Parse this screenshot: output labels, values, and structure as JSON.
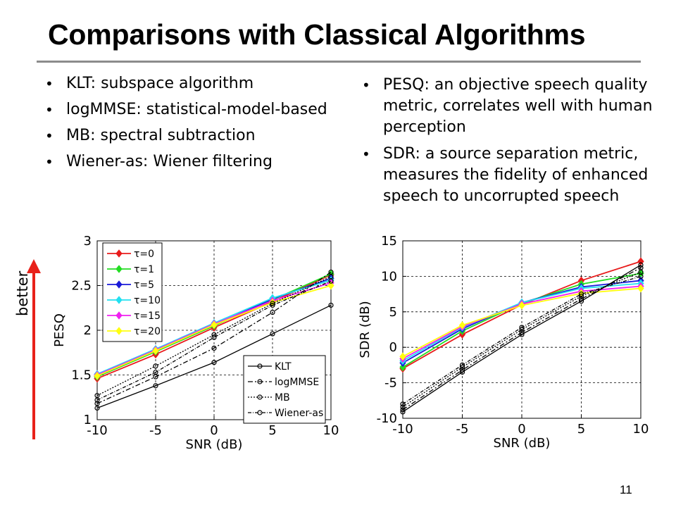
{
  "slide": {
    "title": "Comparisons with Classical Algorithms",
    "left_bullets": [
      "KLT: subspace algorithm",
      "logMMSE: statistical-model-based",
      "MB: spectral subtraction",
      "Wiener-as: Wiener filtering"
    ],
    "right_bullets": [
      "PESQ: an objective speech quality metric, correlates well with human perception",
      "SDR: a source separation metric, measures the fidelity of enhanced speech to uncorrupted speech"
    ],
    "better_label": "better",
    "page_number": "11",
    "arrow_color": "#e8211a"
  },
  "chart_data": [
    {
      "type": "line",
      "x": [
        -10,
        -5,
        0,
        5,
        10
      ],
      "xlabel": "SNR (dB)",
      "ylabel": "PESQ",
      "xlim": [
        -10,
        10
      ],
      "ylim": [
        1,
        3
      ],
      "xticks": [
        "-10",
        "-5",
        "0",
        "5",
        "10"
      ],
      "yticks": [
        "1",
        "1.5",
        "2",
        "2.5",
        "3"
      ],
      "grid": true,
      "legends": [
        "top-left",
        "bottom-right"
      ],
      "series": [
        {
          "name": "τ=0",
          "values": [
            1.46,
            1.73,
            2.03,
            2.32,
            2.62
          ],
          "color": "#e81b1b",
          "marker": "diamond",
          "legend": 0
        },
        {
          "name": "τ=1",
          "values": [
            1.48,
            1.76,
            2.05,
            2.34,
            2.63
          ],
          "color": "#22dd22",
          "marker": "diamond",
          "legend": 0
        },
        {
          "name": "τ=5",
          "values": [
            1.49,
            1.77,
            2.06,
            2.35,
            2.58
          ],
          "color": "#1a1ad8",
          "marker": "diamond",
          "legend": 0
        },
        {
          "name": "τ=10",
          "values": [
            1.51,
            1.79,
            2.08,
            2.36,
            2.56
          ],
          "color": "#22e0f0",
          "marker": "diamond",
          "legend": 0
        },
        {
          "name": "τ=15",
          "values": [
            1.5,
            1.78,
            2.07,
            2.33,
            2.53
          ],
          "color": "#f020f0",
          "marker": "diamond",
          "legend": 0
        },
        {
          "name": "τ=20",
          "values": [
            1.49,
            1.77,
            2.06,
            2.31,
            2.5
          ],
          "color": "#ffff10",
          "marker": "diamond",
          "legend": 0
        },
        {
          "name": "KLT",
          "values": [
            1.13,
            1.38,
            1.64,
            1.96,
            2.28
          ],
          "color": "#000000",
          "dash": "",
          "marker": "circle",
          "legend": 1
        },
        {
          "name": "logMMSE",
          "values": [
            1.18,
            1.48,
            1.8,
            2.2,
            2.65
          ],
          "color": "#000000",
          "dash": "7,3,2,3",
          "marker": "circle",
          "legend": 1
        },
        {
          "name": "MB",
          "values": [
            1.27,
            1.6,
            1.95,
            2.3,
            2.6
          ],
          "color": "#000000",
          "dash": "2,2",
          "marker": "circle",
          "legend": 1
        },
        {
          "name": "Wiener-as",
          "values": [
            1.22,
            1.53,
            1.92,
            2.28,
            2.55
          ],
          "color": "#000000",
          "dash": "5,2,1,2",
          "marker": "circle",
          "legend": 1
        }
      ]
    },
    {
      "type": "line",
      "x": [
        -10,
        -5,
        0,
        5,
        10
      ],
      "xlabel": "SNR (dB)",
      "ylabel": "SDR (dB)",
      "xlim": [
        -10,
        10
      ],
      "ylim": [
        -10,
        15
      ],
      "xticks": [
        "-10",
        "-5",
        "0",
        "5",
        "10"
      ],
      "yticks": [
        "-10",
        "-5",
        "0",
        "5",
        "10",
        "15"
      ],
      "grid": true,
      "series": [
        {
          "name": "τ=0",
          "values": [
            -3,
            1.8,
            6.0,
            9.4,
            12.1
          ],
          "color": "#e81b1b",
          "marker": "diamond"
        },
        {
          "name": "τ=1",
          "values": [
            -2.8,
            2.3,
            6.2,
            8.9,
            10.4
          ],
          "color": "#22dd22",
          "marker": "diamond"
        },
        {
          "name": "τ=5",
          "values": [
            -2.2,
            2.6,
            6.3,
            8.5,
            9.4
          ],
          "color": "#1a1ad8",
          "marker": "diamond"
        },
        {
          "name": "τ=10",
          "values": [
            -1.9,
            2.8,
            6.3,
            8.3,
            9.0
          ],
          "color": "#22e0f0",
          "marker": "diamond"
        },
        {
          "name": "τ=15",
          "values": [
            -1.6,
            2.9,
            6.1,
            7.9,
            8.6
          ],
          "color": "#f020f0",
          "marker": "diamond"
        },
        {
          "name": "τ=20",
          "values": [
            -1.3,
            3.1,
            5.9,
            7.6,
            8.3
          ],
          "color": "#ffff10",
          "marker": "diamond"
        },
        {
          "name": "KLT",
          "values": [
            -9.1,
            -3.5,
            1.8,
            6.5,
            11.6
          ],
          "color": "#000000",
          "dash": "",
          "marker": "circle"
        },
        {
          "name": "logMMSE",
          "values": [
            -8.8,
            -3.2,
            2.1,
            6.8,
            11.2
          ],
          "color": "#000000",
          "dash": "7,3,2,3",
          "marker": "circle"
        },
        {
          "name": "MB",
          "values": [
            -8.4,
            -2.8,
            2.5,
            7.2,
            10.6
          ],
          "color": "#000000",
          "dash": "2,2",
          "marker": "circle"
        },
        {
          "name": "Wiener-as",
          "values": [
            -8.0,
            -2.5,
            2.8,
            7.5,
            10.0
          ],
          "color": "#000000",
          "dash": "5,2,1,2",
          "marker": "circle"
        }
      ]
    }
  ]
}
